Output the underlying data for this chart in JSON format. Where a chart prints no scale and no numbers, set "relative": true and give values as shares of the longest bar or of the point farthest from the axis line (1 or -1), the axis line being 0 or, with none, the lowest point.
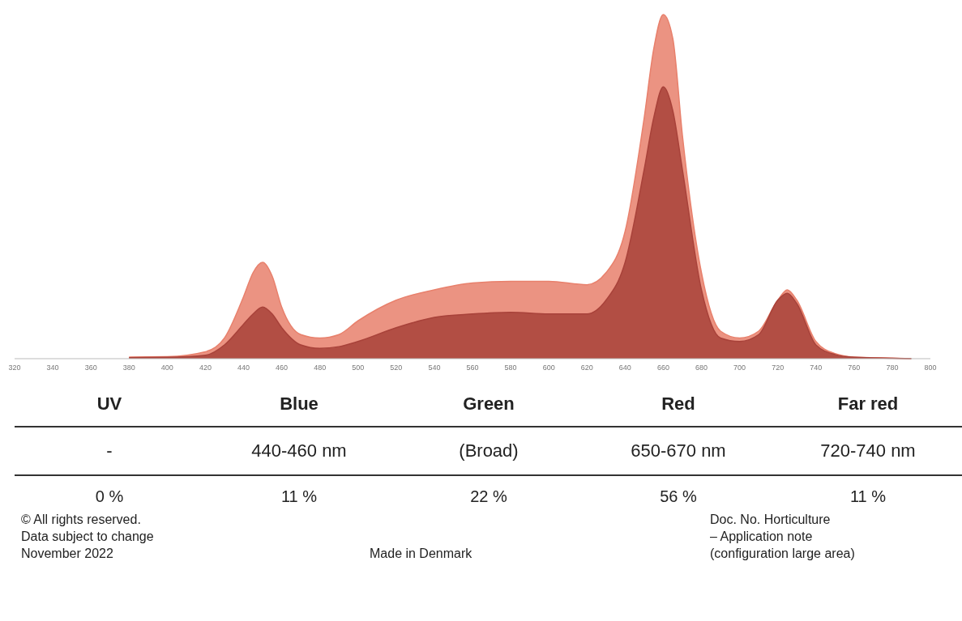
{
  "chart_data": [
    {
      "type": "area",
      "relative": true,
      "x": [
        380,
        400,
        420,
        430,
        440,
        445,
        450,
        455,
        460,
        470,
        480,
        490,
        500,
        520,
        540,
        560,
        580,
        600,
        620,
        630,
        640,
        650,
        655,
        660,
        665,
        670,
        680,
        690,
        700,
        710,
        720,
        725,
        730,
        740,
        750,
        760,
        780,
        790
      ],
      "series": [
        {
          "color": "#e8806c",
          "values": [
            0.005,
            0.006,
            0.02,
            0.06,
            0.18,
            0.25,
            0.28,
            0.24,
            0.15,
            0.07,
            0.06,
            0.07,
            0.11,
            0.17,
            0.2,
            0.22,
            0.225,
            0.225,
            0.215,
            0.25,
            0.37,
            0.7,
            0.9,
            1,
            0.93,
            0.65,
            0.25,
            0.08,
            0.06,
            0.08,
            0.17,
            0.2,
            0.17,
            0.05,
            0.015,
            0.005,
            0.002,
            0
          ]
        },
        {
          "color": "#a8423a",
          "values": [
            0.003,
            0.004,
            0.01,
            0.04,
            0.1,
            0.13,
            0.15,
            0.13,
            0.09,
            0.04,
            0.03,
            0.035,
            0.05,
            0.09,
            0.12,
            0.13,
            0.135,
            0.13,
            0.13,
            0.17,
            0.28,
            0.55,
            0.7,
            0.79,
            0.72,
            0.55,
            0.2,
            0.06,
            0.05,
            0.07,
            0.17,
            0.19,
            0.16,
            0.04,
            0.012,
            0.004,
            0.001,
            0
          ]
        }
      ],
      "xlim": [
        320,
        800
      ],
      "xticks": [
        320,
        340,
        360,
        380,
        400,
        420,
        440,
        460,
        480,
        500,
        520,
        540,
        560,
        580,
        600,
        620,
        640,
        660,
        680,
        700,
        720,
        740,
        760,
        780,
        800
      ],
      "annotations": [
        "© All rights reserved.",
        "Data subject to change",
        "November 2022",
        "Made in Denmark",
        "Doc. No. Horticulture",
        "– Application note",
        "(configuration large area)"
      ]
    },
    {
      "type": "other",
      "categories": [
        "UV",
        "Blue",
        "Green",
        "Red",
        "Far red"
      ],
      "value_labels": [
        "0 %",
        "11 %",
        "22 %",
        "56 %",
        "11 %"
      ],
      "annotations": [
        "-",
        "440-460 nm",
        "(Broad)",
        "650-670 nm",
        "720-740 nm"
      ]
    }
  ]
}
